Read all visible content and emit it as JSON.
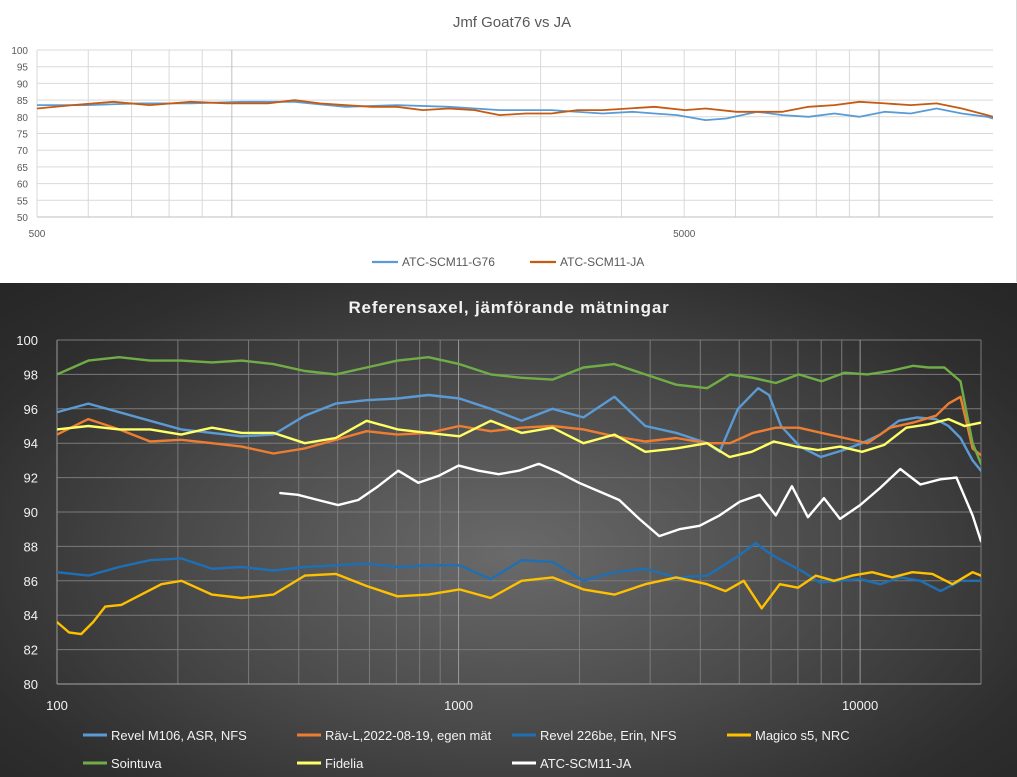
{
  "charts": [
    {
      "title": "Jmf Goat76 vs JA"
    },
    {
      "title": "Referensaxel, jämförande mätningar"
    }
  ],
  "chart_data": [
    {
      "type": "line",
      "title": "Jmf Goat76 vs JA",
      "xscale": "log",
      "xlim": [
        500,
        15000
      ],
      "ylim": [
        50,
        100
      ],
      "grid": true,
      "legend": "bottom",
      "y_ticks": [
        "100",
        "95",
        "90",
        "85",
        "80",
        "75",
        "70",
        "65",
        "60",
        "55",
        "50"
      ],
      "x_tick_labels": [
        {
          "value": 500,
          "label": "500"
        },
        {
          "value": 5000,
          "label": "5000"
        }
      ],
      "series": [
        {
          "name": "ATC-SCM11-G76",
          "color": "#5b9bd5",
          "x": [
            2.699,
            2.778,
            2.857,
            2.937,
            3.017,
            3.097,
            3.176,
            3.255,
            3.335,
            3.414,
            3.494,
            3.573,
            3.619,
            3.653,
            3.688,
            3.732,
            3.764,
            3.812,
            3.851,
            3.891,
            3.931,
            3.97,
            4.009,
            4.049,
            4.089,
            4.128,
            4.167,
            4.176
          ],
          "y": [
            83.5,
            83.5,
            84.0,
            84.0,
            84.5,
            84.5,
            83.0,
            83.5,
            83.0,
            82.0,
            82.0,
            81.0,
            81.5,
            81.0,
            80.5,
            79.0,
            79.5,
            81.5,
            80.5,
            80.0,
            81.0,
            80.0,
            81.5,
            81.0,
            82.5,
            81.0,
            80.0,
            79.5
          ]
        },
        {
          "name": "ATC-SCM11-JA",
          "color": "#c55a11",
          "x": [
            2.699,
            2.754,
            2.817,
            2.873,
            2.937,
            2.992,
            3.056,
            3.097,
            3.136,
            3.176,
            3.216,
            3.255,
            3.295,
            3.335,
            3.375,
            3.414,
            3.454,
            3.494,
            3.534,
            3.573,
            3.613,
            3.653,
            3.7,
            3.732,
            3.78,
            3.812,
            3.851,
            3.891,
            3.931,
            3.97,
            4.009,
            4.049,
            4.089,
            4.128,
            4.167,
            4.176
          ],
          "y": [
            82.5,
            83.5,
            84.5,
            83.5,
            84.5,
            84.0,
            84.0,
            85.0,
            84.0,
            83.5,
            83.0,
            83.0,
            82.0,
            82.5,
            82.0,
            80.5,
            81.0,
            81.0,
            82.0,
            82.0,
            82.5,
            83.0,
            82.0,
            82.5,
            81.5,
            81.5,
            81.5,
            83.0,
            83.5,
            84.5,
            84.0,
            83.5,
            84.0,
            82.5,
            80.5,
            80.0
          ]
        }
      ]
    },
    {
      "type": "line",
      "title": "Referensaxel, jämförande mätningar",
      "xscale": "log",
      "xlim": [
        100,
        20000
      ],
      "ylim": [
        80,
        100
      ],
      "grid": true,
      "legend": "bottom",
      "y_ticks": [
        "100",
        "98",
        "96",
        "94",
        "92",
        "90",
        "88",
        "86",
        "84",
        "82",
        "80"
      ],
      "x_tick_labels": [
        {
          "value": 100,
          "label": "100"
        },
        {
          "value": 1000,
          "label": "1000"
        },
        {
          "value": 10000,
          "label": "10000"
        }
      ],
      "series": [
        {
          "name": "Revel M106, ASR, NFS",
          "color": "#5b9bd5",
          "x": [
            2.0,
            2.078,
            2.155,
            2.232,
            2.309,
            2.386,
            2.46,
            2.539,
            2.617,
            2.694,
            2.771,
            2.848,
            2.925,
            3.002,
            3.08,
            3.157,
            3.234,
            3.311,
            3.388,
            3.465,
            3.542,
            3.619,
            3.65,
            3.696,
            3.746,
            3.773,
            3.803,
            3.85,
            3.902,
            3.958,
            4.004,
            4.05,
            4.096,
            4.142,
            4.188,
            4.22,
            4.25,
            4.28,
            4.301
          ],
          "y": [
            95.8,
            96.3,
            95.8,
            95.3,
            94.8,
            94.6,
            94.4,
            94.5,
            95.6,
            96.3,
            96.5,
            96.6,
            96.8,
            96.6,
            96.0,
            95.3,
            96.0,
            95.5,
            96.7,
            95.0,
            94.6,
            94.0,
            93.5,
            96.0,
            97.2,
            96.8,
            95.0,
            93.8,
            93.2,
            93.6,
            94.0,
            94.5,
            95.3,
            95.5,
            95.4,
            95.0,
            94.3,
            93.0,
            92.4
          ]
        },
        {
          "name": "Räv-L,2022-08-19, egen mät",
          "color": "#ed7d31",
          "x": [
            2.0,
            2.078,
            2.155,
            2.232,
            2.309,
            2.386,
            2.46,
            2.539,
            2.617,
            2.694,
            2.771,
            2.848,
            2.925,
            3.002,
            3.08,
            3.157,
            3.234,
            3.311,
            3.388,
            3.465,
            3.542,
            3.619,
            3.676,
            3.733,
            3.79,
            3.847,
            3.904,
            3.961,
            4.018,
            4.075,
            4.132,
            4.189,
            4.22,
            4.25,
            4.28,
            4.301
          ],
          "y": [
            94.5,
            95.4,
            94.8,
            94.1,
            94.2,
            94.0,
            93.8,
            93.4,
            93.7,
            94.2,
            94.7,
            94.5,
            94.6,
            95.0,
            94.7,
            94.9,
            95.0,
            94.8,
            94.4,
            94.1,
            94.3,
            94.0,
            94.0,
            94.6,
            94.9,
            94.9,
            94.6,
            94.3,
            94.0,
            94.9,
            95.2,
            95.6,
            96.3,
            96.7,
            93.7,
            93.3
          ]
        },
        {
          "name": "Revel 226be, Erin, NFS",
          "color": "#1f6fb5",
          "x": [
            2.0,
            2.078,
            2.155,
            2.232,
            2.309,
            2.386,
            2.46,
            2.539,
            2.617,
            2.694,
            2.771,
            2.848,
            2.925,
            3.002,
            3.08,
            3.157,
            3.234,
            3.311,
            3.388,
            3.465,
            3.542,
            3.619,
            3.66,
            3.7,
            3.74,
            3.78,
            3.82,
            3.86,
            3.9,
            3.95,
            4.0,
            4.05,
            4.1,
            4.15,
            4.2,
            4.25,
            4.301
          ],
          "y": [
            86.5,
            86.3,
            86.8,
            87.2,
            87.3,
            86.7,
            86.8,
            86.6,
            86.8,
            86.9,
            87.0,
            86.8,
            86.9,
            86.9,
            86.1,
            87.2,
            87.1,
            86.0,
            86.5,
            86.7,
            86.2,
            86.3,
            86.9,
            87.5,
            88.2,
            87.5,
            87.0,
            86.5,
            85.9,
            86.0,
            86.1,
            85.8,
            86.2,
            86.0,
            85.4,
            86.0,
            86.0
          ]
        },
        {
          "name": "Magico s5, NRC",
          "color": "#ffc000",
          "x": [
            2.0,
            2.03,
            2.06,
            2.09,
            2.12,
            2.16,
            2.21,
            2.26,
            2.31,
            2.386,
            2.46,
            2.539,
            2.617,
            2.694,
            2.771,
            2.848,
            2.925,
            3.002,
            3.08,
            3.157,
            3.234,
            3.311,
            3.388,
            3.465,
            3.542,
            3.619,
            3.665,
            3.71,
            3.755,
            3.8,
            3.845,
            3.89,
            3.935,
            3.98,
            4.03,
            4.08,
            4.13,
            4.18,
            4.23,
            4.28,
            4.301
          ],
          "y": [
            83.6,
            83.0,
            82.9,
            83.6,
            84.5,
            84.6,
            85.2,
            85.8,
            86.0,
            85.2,
            85.0,
            85.2,
            86.3,
            86.4,
            85.7,
            85.1,
            85.2,
            85.5,
            85.0,
            86.0,
            86.2,
            85.5,
            85.2,
            85.8,
            86.2,
            85.8,
            85.4,
            86.0,
            84.4,
            85.8,
            85.6,
            86.3,
            86.0,
            86.3,
            86.5,
            86.2,
            86.5,
            86.4,
            85.8,
            86.5,
            86.3
          ]
        },
        {
          "name": "Sointuva",
          "color": "#70ad47",
          "x": [
            2.0,
            2.078,
            2.155,
            2.232,
            2.309,
            2.386,
            2.46,
            2.539,
            2.617,
            2.694,
            2.771,
            2.848,
            2.925,
            3.002,
            3.08,
            3.157,
            3.234,
            3.311,
            3.388,
            3.465,
            3.542,
            3.619,
            3.676,
            3.733,
            3.79,
            3.847,
            3.904,
            3.961,
            4.018,
            4.075,
            4.132,
            4.17,
            4.21,
            4.25,
            4.28,
            4.301
          ],
          "y": [
            98.0,
            98.8,
            99.0,
            98.8,
            98.8,
            98.7,
            98.8,
            98.6,
            98.2,
            98.0,
            98.4,
            98.8,
            99.0,
            98.6,
            98.0,
            97.8,
            97.7,
            98.4,
            98.6,
            98.0,
            97.4,
            97.2,
            98.0,
            97.8,
            97.5,
            98.0,
            97.6,
            98.1,
            98.0,
            98.2,
            98.5,
            98.4,
            98.4,
            97.6,
            94.0,
            92.8
          ]
        },
        {
          "name": "Fidelia",
          "color": "#ffff66",
          "x": [
            2.0,
            2.078,
            2.155,
            2.232,
            2.309,
            2.386,
            2.46,
            2.539,
            2.617,
            2.694,
            2.771,
            2.848,
            2.925,
            3.002,
            3.08,
            3.157,
            3.234,
            3.311,
            3.388,
            3.465,
            3.542,
            3.619,
            3.675,
            3.73,
            3.785,
            3.84,
            3.895,
            3.95,
            4.005,
            4.06,
            4.115,
            4.17,
            4.22,
            4.26,
            4.301
          ],
          "y": [
            94.8,
            95.0,
            94.8,
            94.8,
            94.5,
            94.9,
            94.6,
            94.6,
            94.0,
            94.3,
            95.3,
            94.8,
            94.6,
            94.4,
            95.3,
            94.6,
            94.9,
            94.0,
            94.5,
            93.5,
            93.7,
            94.0,
            93.2,
            93.5,
            94.1,
            93.8,
            93.6,
            93.8,
            93.5,
            93.9,
            94.9,
            95.1,
            95.4,
            95.0,
            95.2
          ]
        },
        {
          "name": "ATC-SCM11-JA",
          "color": "#ffffff",
          "x": [
            2.556,
            2.6,
            2.65,
            2.7,
            2.75,
            2.8,
            2.85,
            2.9,
            2.95,
            3.0,
            3.05,
            3.1,
            3.15,
            3.2,
            3.25,
            3.3,
            3.35,
            3.4,
            3.45,
            3.5,
            3.55,
            3.6,
            3.65,
            3.7,
            3.75,
            3.79,
            3.83,
            3.87,
            3.91,
            3.95,
            4.0,
            4.05,
            4.1,
            4.15,
            4.2,
            4.24,
            4.28,
            4.301
          ],
          "y": [
            91.1,
            91.0,
            90.7,
            90.4,
            90.7,
            91.5,
            92.4,
            91.7,
            92.1,
            92.7,
            92.4,
            92.2,
            92.4,
            92.8,
            92.3,
            91.7,
            91.2,
            90.7,
            89.6,
            88.6,
            89.0,
            89.2,
            89.8,
            90.6,
            91.0,
            89.8,
            91.5,
            89.7,
            90.8,
            89.6,
            90.4,
            91.4,
            92.5,
            91.6,
            91.9,
            92.0,
            89.8,
            88.3
          ]
        }
      ]
    }
  ]
}
